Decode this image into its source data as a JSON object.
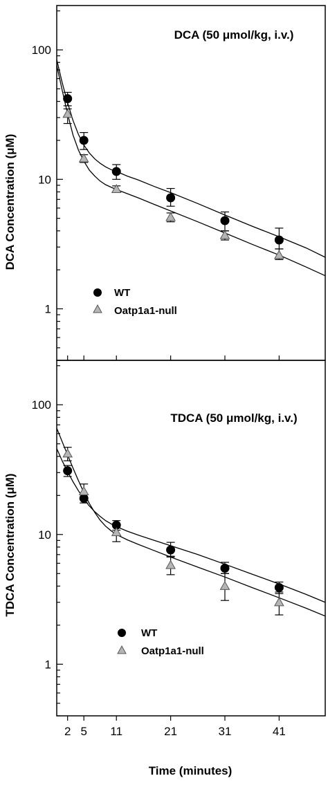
{
  "chart_data": [
    {
      "type": "scatter",
      "title": "DCA (50 μmol/kg, i.v.)",
      "ylabel": "DCA Concentration (μM)",
      "xlabel": "Time (minutes)",
      "y_scale": "log",
      "ylim": [
        0.4,
        220
      ],
      "xlim": [
        0,
        49.5
      ],
      "y_tick_values": [
        1,
        10,
        100
      ],
      "y_tick_labels": [
        "1",
        "10",
        "100"
      ],
      "legend_position": "bottom-left",
      "series": [
        {
          "name": "WT",
          "marker": "circle",
          "color": "#000000",
          "x": [
            2,
            5,
            11,
            21,
            31,
            41
          ],
          "y": [
            42,
            20,
            11.5,
            7.2,
            4.8,
            3.4
          ],
          "err_low": [
            37,
            17,
            10,
            6.2,
            4.0,
            2.9
          ],
          "err_high": [
            47,
            23,
            13,
            8.5,
            5.6,
            4.2
          ],
          "fit": [
            [
              0,
              84
            ],
            [
              1,
              56
            ],
            [
              2,
              39
            ],
            [
              3,
              28.5
            ],
            [
              4,
              22.2
            ],
            [
              5,
              18.4
            ],
            [
              6,
              16.0
            ],
            [
              7,
              14.4
            ],
            [
              8,
              13.3
            ],
            [
              9,
              12.5
            ],
            [
              10,
              11.9
            ],
            [
              11,
              11.5
            ],
            [
              13,
              10.6
            ],
            [
              15,
              9.9
            ],
            [
              18,
              8.8
            ],
            [
              21,
              7.9
            ],
            [
              26,
              6.5
            ],
            [
              31,
              5.3
            ],
            [
              36,
              4.35
            ],
            [
              41,
              3.6
            ],
            [
              46,
              2.95
            ],
            [
              49.5,
              2.5
            ]
          ]
        },
        {
          "name": "Oatp1a1-null",
          "marker": "triangle",
          "color": "#aaaaaa",
          "x": [
            2,
            5,
            11,
            21,
            31,
            41
          ],
          "y": [
            32,
            14.5,
            8.4,
            5.1,
            3.7,
            2.6
          ],
          "err_low": [
            27,
            13.5,
            8.0,
            4.7,
            3.4,
            2.4
          ],
          "err_high": [
            35,
            15.5,
            8.9,
            5.5,
            4.0,
            2.9
          ],
          "fit": [
            [
              0,
              76
            ],
            [
              1,
              49
            ],
            [
              2,
              32
            ],
            [
              3,
              22
            ],
            [
              4,
              16.8
            ],
            [
              5,
              13.8
            ],
            [
              6,
              11.8
            ],
            [
              7,
              10.6
            ],
            [
              8,
              9.7
            ],
            [
              9,
              9.1
            ],
            [
              10,
              8.7
            ],
            [
              11,
              8.35
            ],
            [
              13,
              7.75
            ],
            [
              15,
              7.2
            ],
            [
              18,
              6.4
            ],
            [
              21,
              5.7
            ],
            [
              26,
              4.7
            ],
            [
              31,
              3.85
            ],
            [
              36,
              3.15
            ],
            [
              41,
              2.6
            ],
            [
              46,
              2.1
            ],
            [
              49.5,
              1.8
            ]
          ]
        }
      ]
    },
    {
      "type": "scatter",
      "title": "TDCA (50 μmol/kg, i.v.)",
      "ylabel": "TDCA Concentration (μM)",
      "xlabel": "Time (minutes)",
      "y_scale": "log",
      "ylim": [
        0.4,
        220
      ],
      "xlim": [
        0,
        49.5
      ],
      "y_tick_values": [
        1,
        10,
        100
      ],
      "y_tick_labels": [
        "1",
        "10",
        "100"
      ],
      "x_tick_values": [
        2,
        5,
        11,
        21,
        31,
        41
      ],
      "x_tick_labels": [
        "2",
        "5",
        "11",
        "21",
        "31",
        "41"
      ],
      "legend_position": "bottom-left",
      "series": [
        {
          "name": "WT",
          "marker": "circle",
          "color": "#000000",
          "x": [
            2,
            5,
            11,
            21,
            31,
            41
          ],
          "y": [
            31,
            19,
            11.8,
            7.6,
            5.5,
            3.9
          ],
          "err_low": [
            28,
            17.5,
            10.8,
            6.7,
            5.0,
            3.5
          ],
          "err_high": [
            34,
            20.5,
            12.8,
            8.7,
            6.1,
            4.3
          ],
          "fit": [
            [
              0,
              46
            ],
            [
              1,
              37
            ],
            [
              2,
              30.5
            ],
            [
              3,
              25.5
            ],
            [
              4,
              21.7
            ],
            [
              5,
              18.8
            ],
            [
              6,
              16.6
            ],
            [
              7,
              15.0
            ],
            [
              8,
              13.8
            ],
            [
              9,
              12.8
            ],
            [
              10,
              12.1
            ],
            [
              11,
              11.5
            ],
            [
              13,
              10.6
            ],
            [
              15,
              9.9
            ],
            [
              18,
              9.0
            ],
            [
              21,
              8.2
            ],
            [
              26,
              7.0
            ],
            [
              31,
              5.9
            ],
            [
              36,
              4.95
            ],
            [
              41,
              4.15
            ],
            [
              46,
              3.45
            ],
            [
              49.5,
              3.0
            ]
          ]
        },
        {
          "name": "Oatp1a1-null",
          "marker": "triangle",
          "color": "#aaaaaa",
          "x": [
            2,
            5,
            11,
            21,
            31,
            41
          ],
          "y": [
            42,
            21.5,
            10.4,
            5.8,
            4.0,
            3.0
          ],
          "err_low": [
            37,
            19,
            8.8,
            4.9,
            3.1,
            2.4
          ],
          "err_high": [
            47,
            24.5,
            12.0,
            6.8,
            5.0,
            3.6
          ],
          "fit": [
            [
              0,
              66
            ],
            [
              1,
              52
            ],
            [
              2,
              41
            ],
            [
              3,
              32.5
            ],
            [
              4,
              26
            ],
            [
              5,
              21
            ],
            [
              6,
              17.4
            ],
            [
              7,
              14.8
            ],
            [
              8,
              12.9
            ],
            [
              9,
              11.6
            ],
            [
              10,
              10.7
            ],
            [
              11,
              10.0
            ],
            [
              13,
              9.1
            ],
            [
              15,
              8.4
            ],
            [
              18,
              7.5
            ],
            [
              21,
              6.7
            ],
            [
              26,
              5.6
            ],
            [
              31,
              4.7
            ],
            [
              36,
              3.9
            ],
            [
              41,
              3.25
            ],
            [
              46,
              2.7
            ],
            [
              49.5,
              2.35
            ]
          ]
        }
      ]
    }
  ]
}
